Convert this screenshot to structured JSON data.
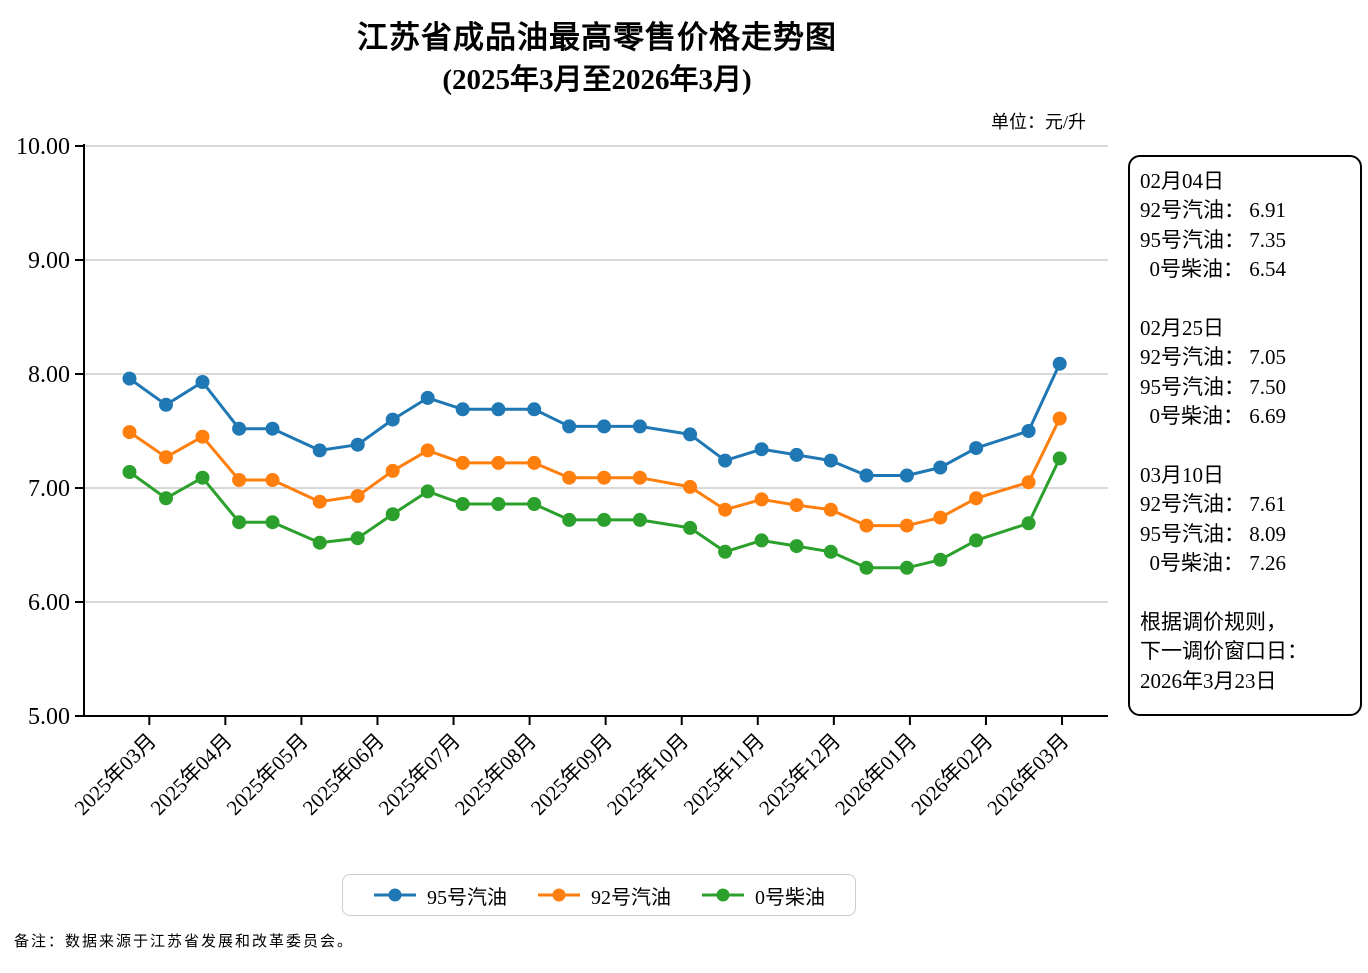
{
  "title": {
    "line1": "江苏省成品油最高零售价格走势图",
    "line2": "(2025年3月至2026年3月)"
  },
  "unit_label": "单位：元/升",
  "footnote": "备注：数据来源于江苏省发展和改革委员会。",
  "info_box": {
    "sections": [
      {
        "date": "02月04日",
        "rows": [
          {
            "label": "92号汽油",
            "value": "6.91"
          },
          {
            "label": "95号汽油",
            "value": "7.35"
          },
          {
            "label": "0号柴油",
            "value": "6.54"
          }
        ]
      },
      {
        "date": "02月25日",
        "rows": [
          {
            "label": "92号汽油",
            "value": "7.05"
          },
          {
            "label": "95号汽油",
            "value": "7.50"
          },
          {
            "label": "0号柴油",
            "value": "6.69"
          }
        ]
      },
      {
        "date": "03月10日",
        "rows": [
          {
            "label": "92号汽油",
            "value": "7.61"
          },
          {
            "label": "95号汽油",
            "value": "8.09"
          },
          {
            "label": "0号柴油",
            "value": "7.26"
          }
        ]
      }
    ],
    "notice_lines": [
      "根据调价规则，",
      "下一调价窗口日：",
      "2026年3月23日"
    ]
  },
  "legend": [
    {
      "label": "95号汽油",
      "color": "#1f77b4"
    },
    {
      "label": "92号汽油",
      "color": "#ff7f0e"
    },
    {
      "label": "0号柴油",
      "color": "#2ca02c"
    }
  ],
  "chart_data": {
    "type": "line",
    "title": "江苏省成品油最高零售价格走势图 (2025年3月至2026年3月)",
    "ylabel": "元/升",
    "ylim": [
      5,
      10
    ],
    "y_tick_step": 1,
    "y_tick_format_decimals": 2,
    "grid": "horizontal",
    "legend_position": "bottom",
    "x_tick_labels": [
      "2025年03月",
      "2025年04月",
      "2025年05月",
      "2025年06月",
      "2025年07月",
      "2025年08月",
      "2025年09月",
      "2025年10月",
      "2025年11月",
      "2025年12月",
      "2026年01月",
      "2026年02月",
      "2026年03月"
    ],
    "x": [
      -0.26,
      0.22,
      0.7,
      1.18,
      1.62,
      2.24,
      2.74,
      3.2,
      3.66,
      4.12,
      4.59,
      5.06,
      5.52,
      5.98,
      6.45,
      7.11,
      7.57,
      8.05,
      8.51,
      8.96,
      9.43,
      9.96,
      10.4,
      10.87,
      11.56,
      11.97
    ],
    "series": [
      {
        "name": "95号汽油",
        "color": "#1f77b4",
        "values": [
          7.96,
          7.73,
          7.93,
          7.52,
          7.52,
          7.33,
          7.38,
          7.6,
          7.79,
          7.69,
          7.69,
          7.69,
          7.54,
          7.54,
          7.54,
          7.47,
          7.24,
          7.34,
          7.29,
          7.24,
          7.11,
          7.11,
          7.18,
          7.35,
          7.5,
          8.09
        ]
      },
      {
        "name": "92号汽油",
        "color": "#ff7f0e",
        "values": [
          7.49,
          7.27,
          7.45,
          7.07,
          7.07,
          6.88,
          6.93,
          7.15,
          7.33,
          7.22,
          7.22,
          7.22,
          7.09,
          7.09,
          7.09,
          7.01,
          6.81,
          6.9,
          6.85,
          6.81,
          6.67,
          6.67,
          6.74,
          6.91,
          7.05,
          7.61
        ]
      },
      {
        "name": "0号柴油",
        "color": "#2ca02c",
        "values": [
          7.14,
          6.91,
          7.09,
          6.7,
          6.7,
          6.52,
          6.56,
          6.77,
          6.97,
          6.86,
          6.86,
          6.86,
          6.72,
          6.72,
          6.72,
          6.65,
          6.44,
          6.54,
          6.49,
          6.44,
          6.3,
          6.3,
          6.37,
          6.54,
          6.69,
          7.26
        ]
      }
    ]
  }
}
